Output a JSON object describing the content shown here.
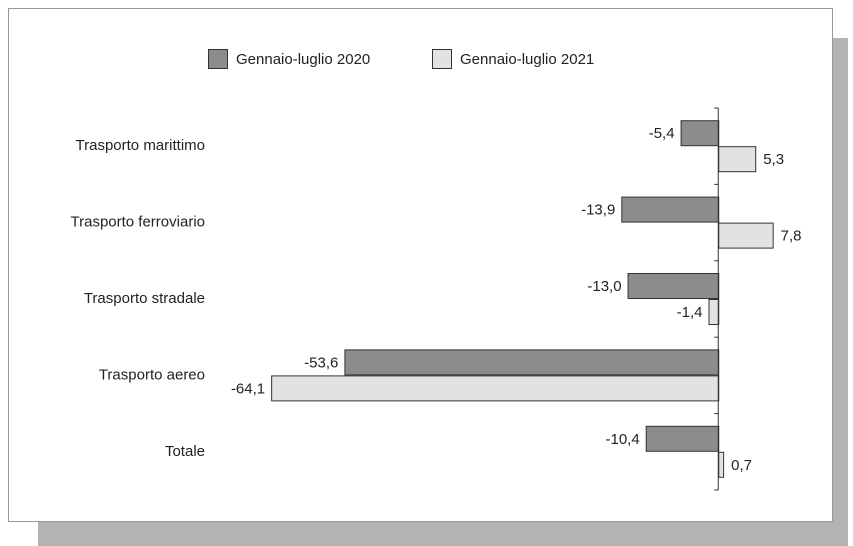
{
  "chart_data": {
    "type": "bar",
    "orientation": "horizontal",
    "categories": [
      "Trasporto marittimo",
      "Trasporto ferroviario",
      "Trasporto stradale",
      "Trasporto aereo",
      "Totale"
    ],
    "series": [
      {
        "name": "Gennaio-luglio 2020",
        "color": "#8c8c8c",
        "values": [
          -5.4,
          -13.9,
          -13.0,
          -53.6,
          -10.4
        ],
        "value_labels": [
          "-5,4",
          "-13,9",
          "-13,0",
          "-53,6",
          "-10,4"
        ]
      },
      {
        "name": "Gennaio-luglio 2021",
        "color": "#e2e2e2",
        "values": [
          5.3,
          7.8,
          -1.4,
          -64.1,
          0.7
        ],
        "value_labels": [
          "5,3",
          "7,8",
          "-1,4",
          "-64,1",
          "0,7"
        ]
      }
    ],
    "xlim": [
      -70,
      10
    ],
    "legend": "top"
  }
}
